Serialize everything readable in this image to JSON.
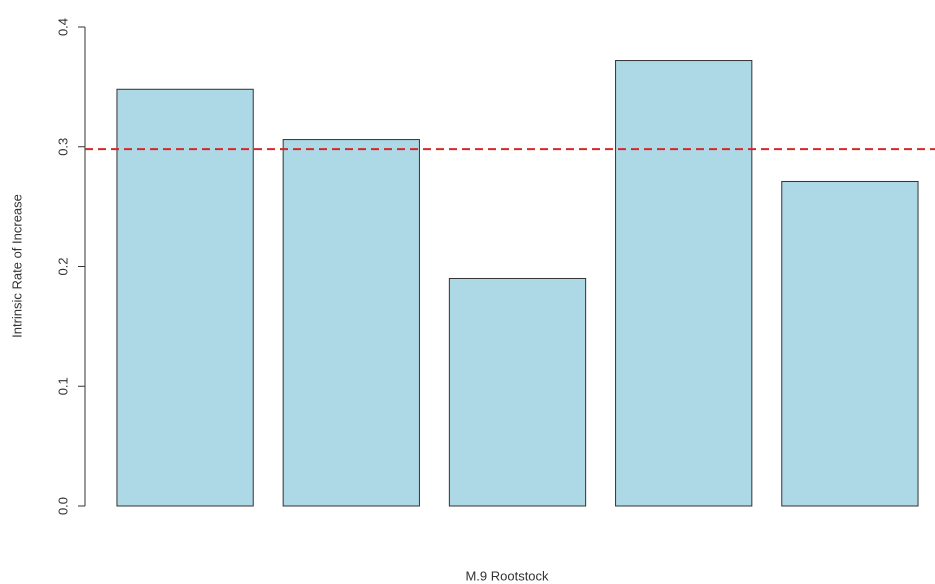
{
  "chart_data": {
    "type": "bar",
    "x_label": "M.9 Rootstock",
    "y_label": "Intrinsic Rate of Increase",
    "categories": [
      null,
      null,
      null,
      null,
      null
    ],
    "values": [
      0.348,
      0.306,
      0.19,
      0.372,
      0.271
    ],
    "color": "#add8e6",
    "edge_color": "#333333",
    "ylim": [
      0,
      0.4
    ],
    "yticks": [
      {
        "value": 0,
        "label": "0.0"
      },
      0.1,
      0.2,
      0.3,
      0.4
    ],
    "reference_line": {
      "value": 0.298,
      "color": "#d62728",
      "style": "dashed"
    }
  }
}
